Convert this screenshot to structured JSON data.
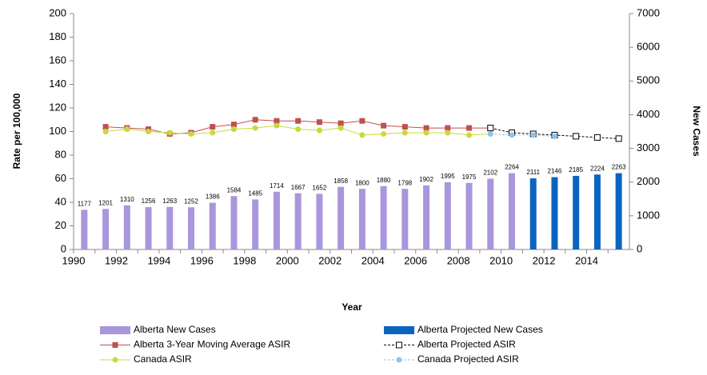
{
  "chart_data": {
    "type": "combo",
    "y_label": "Rate per 100,000",
    "y2_label": "New Cases",
    "x_label": "Year",
    "categories": [
      "1990",
      null,
      "1992",
      null,
      "1994",
      null,
      "1996",
      null,
      "1998",
      null,
      "2000",
      null,
      "2002",
      null,
      "2004",
      null,
      "2006",
      null,
      "2008",
      null,
      "2010",
      null,
      "2012",
      null,
      "2014",
      null
    ],
    "ylim": [
      0,
      200
    ],
    "yticks": [
      0,
      20,
      40,
      60,
      80,
      100,
      120,
      140,
      160,
      180,
      200
    ],
    "y2lim": [
      0,
      7000
    ],
    "y2ticks": [
      0,
      1000,
      2000,
      3000,
      4000,
      5000,
      6000,
      7000
    ],
    "series": [
      {
        "name": "Alberta New Cases",
        "type": "bar",
        "axis": "y2",
        "color": "#a996dc",
        "labels": true,
        "values": [
          1177,
          1201,
          1310,
          1256,
          1263,
          1252,
          1386,
          1584,
          1485,
          1714,
          1667,
          1652,
          1858,
          1800,
          1880,
          1798,
          1902,
          1995,
          1975,
          2102,
          2264,
          null,
          null,
          null,
          null,
          null
        ]
      },
      {
        "name": "Alberta Projected New Cases",
        "type": "bar",
        "axis": "y2",
        "color": "#0a64c0",
        "labels": true,
        "values": [
          null,
          null,
          null,
          null,
          null,
          null,
          null,
          null,
          null,
          null,
          null,
          null,
          null,
          null,
          null,
          null,
          null,
          null,
          null,
          null,
          null,
          2111,
          2146,
          2185,
          2224,
          2263
        ]
      },
      {
        "name": "Alberta 3-Year Moving Average ASIR",
        "type": "line",
        "color": "#c0504d",
        "marker": "square",
        "dash": false,
        "values": [
          null,
          104,
          103,
          102,
          98,
          99,
          104,
          106,
          110,
          109,
          109,
          108,
          107,
          109,
          105,
          104,
          103,
          103,
          103,
          103,
          null,
          null,
          null,
          null,
          null,
          null
        ]
      },
      {
        "name": "Alberta Projected ASIR",
        "type": "line",
        "color": "#000000",
        "marker": "hollow-square",
        "dash": true,
        "values": [
          null,
          null,
          null,
          null,
          null,
          null,
          null,
          null,
          null,
          null,
          null,
          null,
          null,
          null,
          null,
          null,
          null,
          null,
          null,
          103,
          99,
          98,
          97,
          96,
          95,
          94
        ]
      },
      {
        "name": "Canada ASIR",
        "type": "line",
        "color": "#c9d93a",
        "marker": "circle",
        "dash": false,
        "values": [
          null,
          100,
          102,
          100,
          99,
          98,
          99,
          102,
          103,
          105,
          102,
          101,
          103,
          97,
          98,
          99,
          99,
          99,
          97,
          98,
          null,
          null,
          null,
          null,
          null,
          null
        ]
      },
      {
        "name": "Canada Projected ASIR",
        "type": "line",
        "color": "#8fc4ef",
        "marker": "circle",
        "dash": true,
        "values": [
          null,
          null,
          null,
          null,
          null,
          null,
          null,
          null,
          null,
          null,
          null,
          null,
          null,
          null,
          null,
          null,
          null,
          null,
          null,
          98,
          97,
          97,
          96,
          null,
          null,
          null
        ]
      }
    ]
  }
}
